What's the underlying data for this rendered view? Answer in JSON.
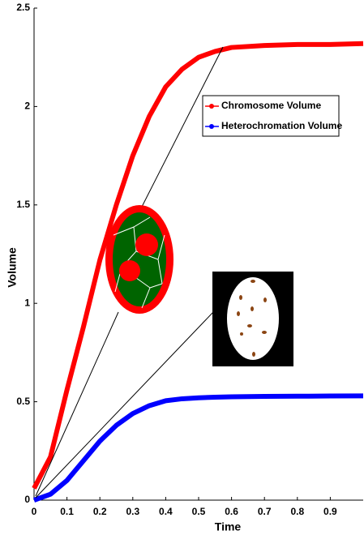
{
  "chart_data": {
    "type": "line",
    "x": [
      0,
      0.05,
      0.1,
      0.15,
      0.2,
      0.25,
      0.3,
      0.35,
      0.4,
      0.45,
      0.5,
      0.55,
      0.6,
      0.7,
      0.8,
      0.9,
      1.0
    ],
    "series": [
      {
        "name": "Chromosome Volume",
        "color": "#ff0000",
        "values": [
          0.06,
          0.22,
          0.56,
          0.88,
          1.22,
          1.5,
          1.75,
          1.95,
          2.1,
          2.19,
          2.25,
          2.28,
          2.3,
          2.31,
          2.315,
          2.315,
          2.32
        ]
      },
      {
        "name": "Heterochromation Volume",
        "color": "#0000ff",
        "values": [
          0.0,
          0.03,
          0.1,
          0.2,
          0.3,
          0.38,
          0.44,
          0.48,
          0.505,
          0.515,
          0.52,
          0.523,
          0.525,
          0.527,
          0.528,
          0.529,
          0.53
        ]
      }
    ],
    "xlabel": "Time",
    "ylabel": "Volume",
    "xlim": [
      0,
      1
    ],
    "ylim": [
      0,
      2.5
    ],
    "xticks": [
      0,
      0.1,
      0.2,
      0.3,
      0.4,
      0.5,
      0.6,
      0.7,
      0.8,
      0.9
    ],
    "yticks": [
      0,
      0.5,
      1,
      1.5,
      2,
      2.5
    ],
    "legend": "upper right"
  }
}
